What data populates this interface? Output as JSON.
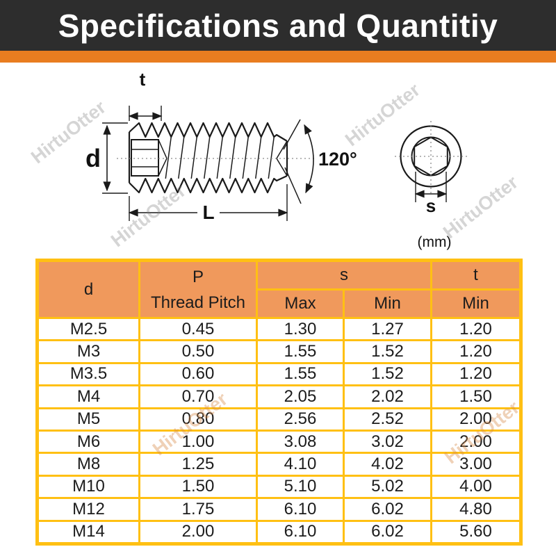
{
  "title_banner": {
    "title": "Specifications and Quantitiy"
  },
  "colors": {
    "banner_bg": "#2D2D2D",
    "accent_orange": "#E97D20",
    "table_border": "#FFC013",
    "table_header_bg": "#F0995C"
  },
  "watermark": {
    "text": "HirtuOtter"
  },
  "diagram": {
    "unit_label": "(mm)",
    "side_view": {
      "dim_t": "t",
      "dim_d": "d",
      "dim_L": "L",
      "angle": "120°"
    },
    "end_view": {
      "dim_s": "s"
    }
  },
  "table": {
    "header": {
      "d": "d",
      "p_symbol": "P",
      "p_name": "Thread Pitch",
      "s": "s",
      "t": "t",
      "s_max": "Max",
      "s_min": "Min",
      "t_min": "Min"
    },
    "rows": [
      [
        "M2.5",
        "0.45",
        "1.30",
        "1.27",
        "1.20"
      ],
      [
        "M3",
        "0.50",
        "1.55",
        "1.52",
        "1.20"
      ],
      [
        "M3.5",
        "0.60",
        "1.55",
        "1.52",
        "1.20"
      ],
      [
        "M4",
        "0.70",
        "2.05",
        "2.02",
        "1.50"
      ],
      [
        "M5",
        "0.80",
        "2.56",
        "2.52",
        "2.00"
      ],
      [
        "M6",
        "1.00",
        "3.08",
        "3.02",
        "2.00"
      ],
      [
        "M8",
        "1.25",
        "4.10",
        "4.02",
        "3.00"
      ],
      [
        "M10",
        "1.50",
        "5.10",
        "5.02",
        "4.00"
      ],
      [
        "M12",
        "1.75",
        "6.10",
        "6.02",
        "4.80"
      ],
      [
        "M14",
        "2.00",
        "6.10",
        "6.02",
        "5.60"
      ]
    ]
  }
}
